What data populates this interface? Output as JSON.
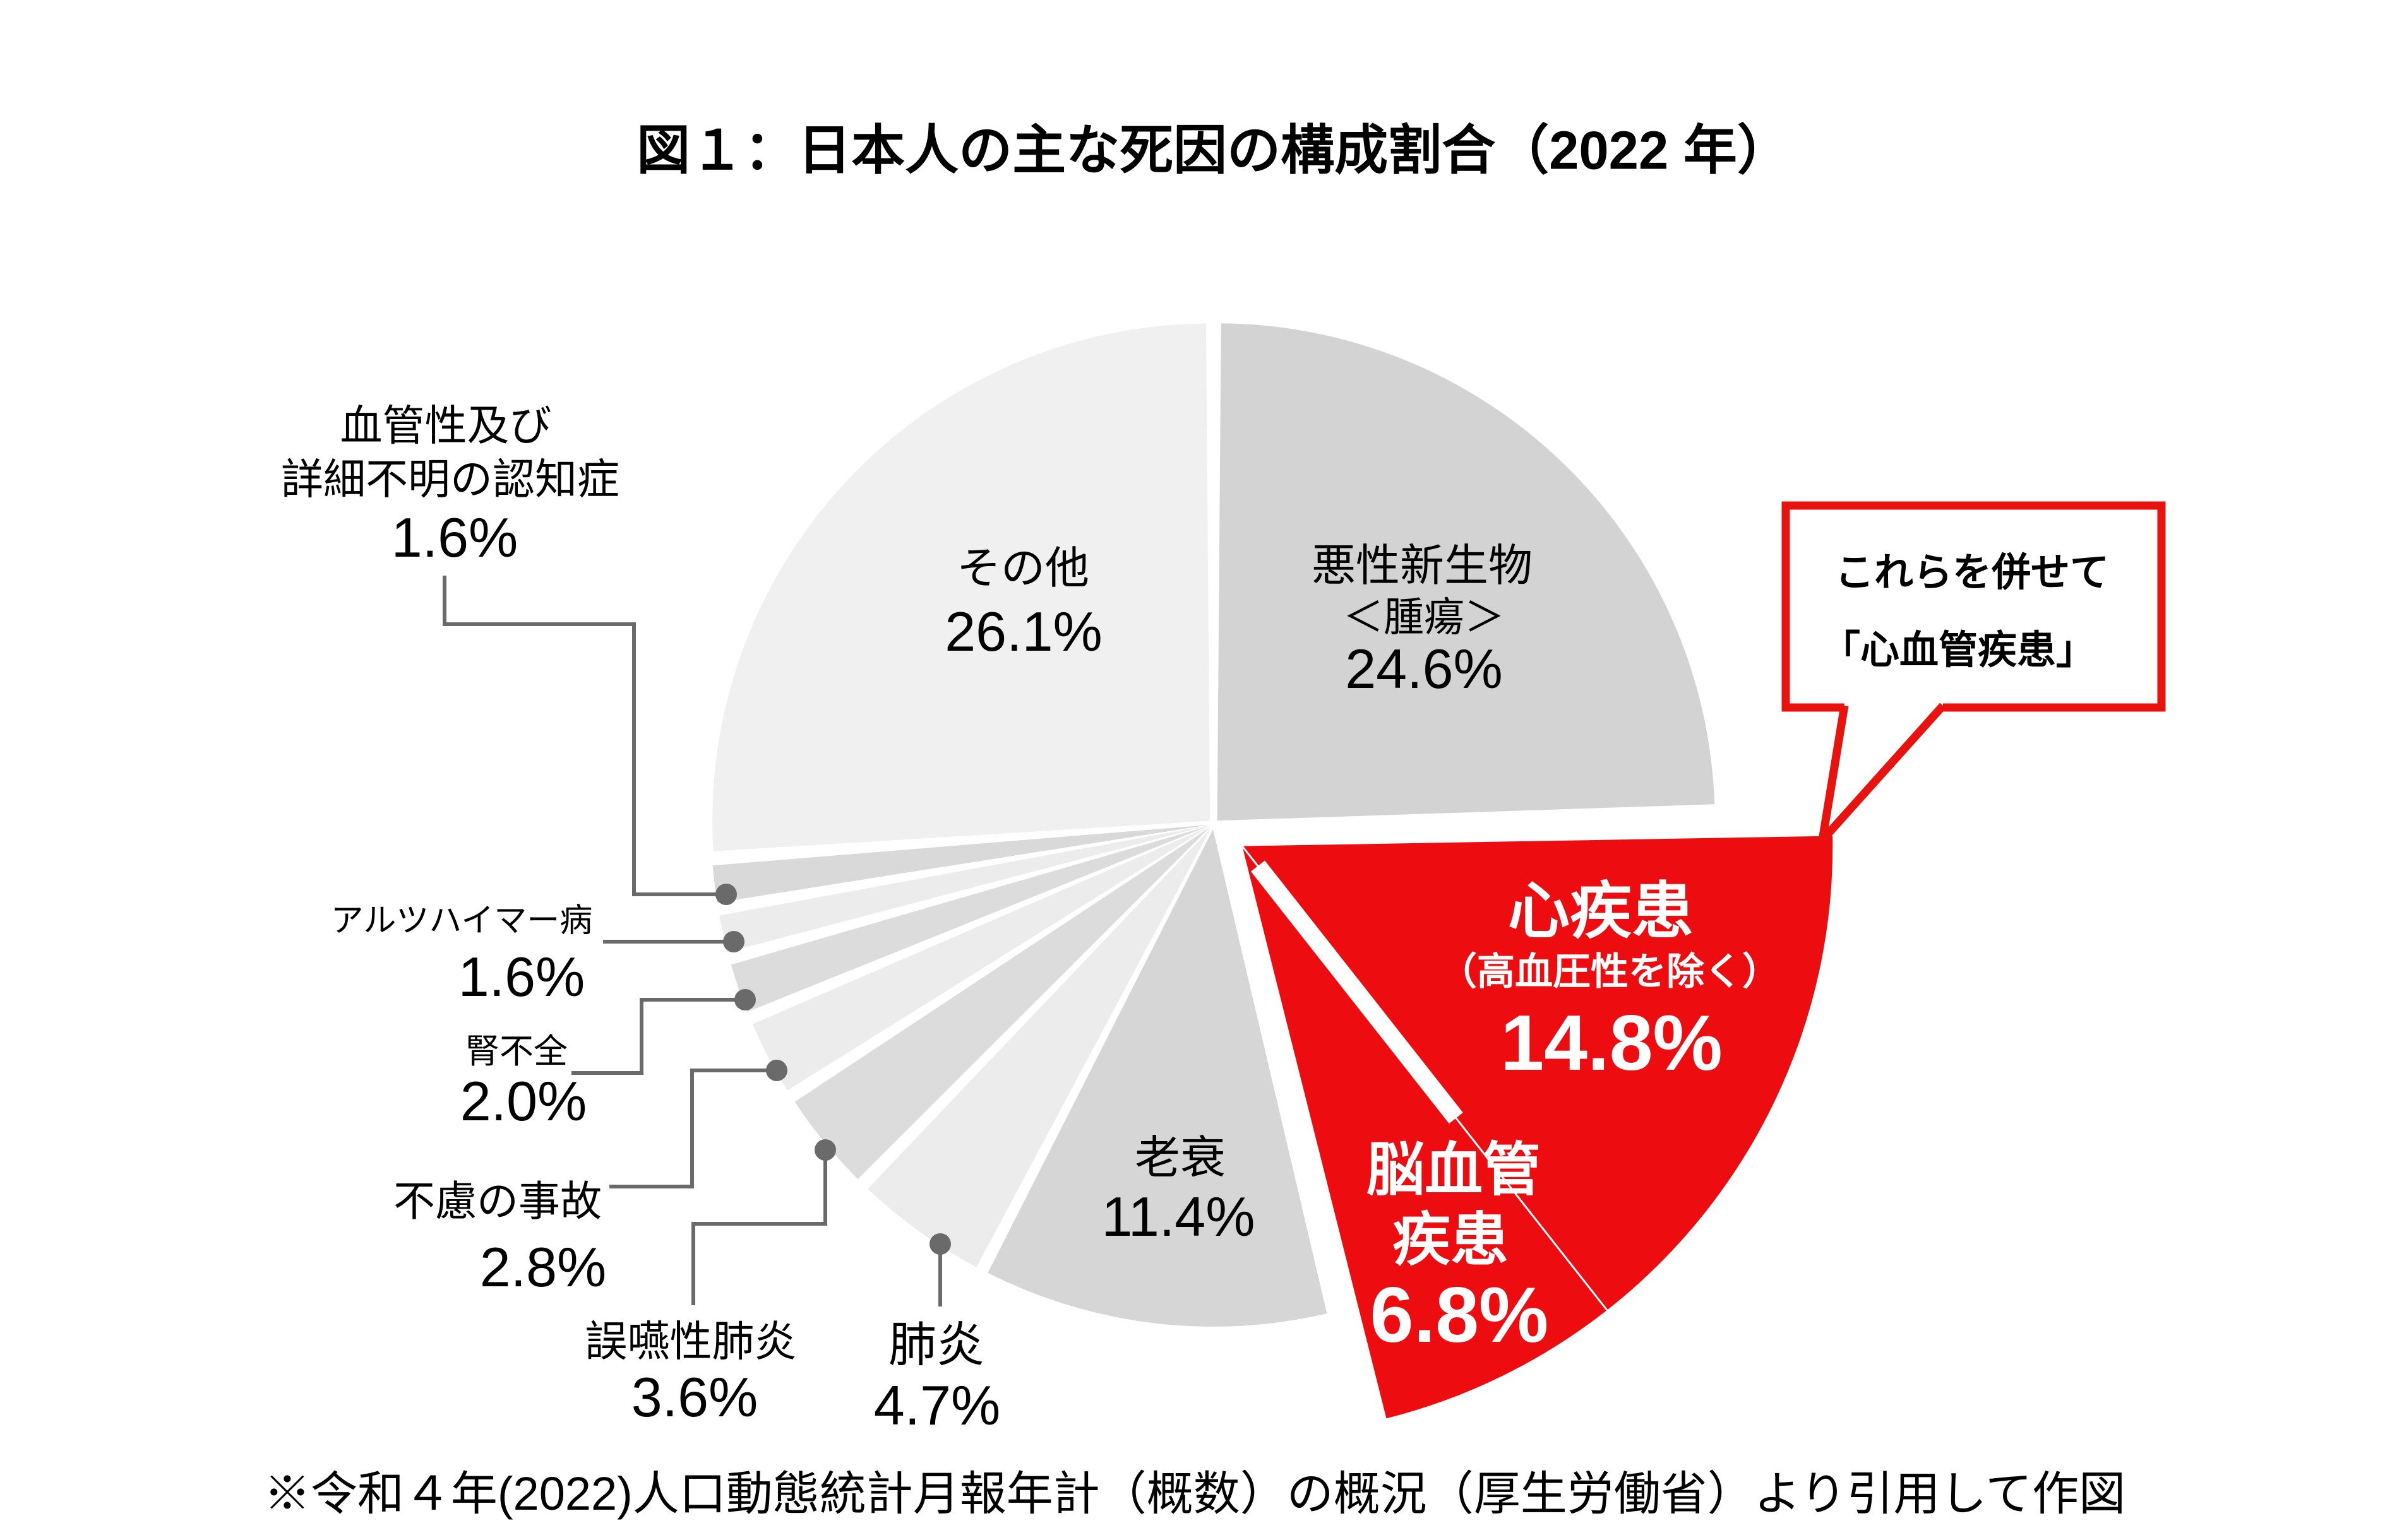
{
  "title": "図１：日本人の主な死因の構成割合（2022 年）",
  "footnote": "※令和４年(2022)人口動態統計月報年計（概数）の概況（厚生労働省）より引用して作図",
  "callout": {
    "line1": "これらを併せて",
    "line2": "「心血管疾患」",
    "border_color": "#e8120f"
  },
  "colors": {
    "highlight_red": "#ed0c10",
    "leader_gray": "#6a6a6a",
    "label_black": "#000000",
    "white": "#ffffff"
  },
  "chart_data": {
    "type": "pie",
    "title": "図１：日本人の主な死因の構成割合（2022 年）",
    "units": "%",
    "start_angle_deg": 0,
    "direction": "clockwise",
    "legend": "none",
    "annotation": "これらを併せて「心血管疾患」",
    "slices": [
      {
        "label": "悪性新生物＜腫瘍＞",
        "label_lines": [
          "悪性新生物",
          "＜腫瘍＞"
        ],
        "value": 24.6,
        "pct_label": "24.6%",
        "color": "#d3d3d3",
        "group": "other"
      },
      {
        "label": "心疾患（高血圧性を除く）",
        "label_lines": [
          "心疾患",
          "（高血圧性を除く）"
        ],
        "value": 14.8,
        "pct_label": "14.8%",
        "color": "#ed0c10",
        "group": "cardiovascular"
      },
      {
        "label": "脳血管疾患",
        "label_lines": [
          "脳血管",
          "疾患"
        ],
        "value": 6.8,
        "pct_label": "6.8%",
        "color": "#ed0c10",
        "group": "cardiovascular"
      },
      {
        "label": "老衰",
        "label_lines": [
          "老衰"
        ],
        "value": 11.4,
        "pct_label": "11.4%",
        "color": "#d6d6d6",
        "group": "other"
      },
      {
        "label": "肺炎",
        "label_lines": [
          "肺炎"
        ],
        "value": 4.7,
        "pct_label": "4.7%",
        "color": "#ececec",
        "group": "other"
      },
      {
        "label": "誤嚥性肺炎",
        "label_lines": [
          "誤嚥性肺炎"
        ],
        "value": 3.6,
        "pct_label": "3.6%",
        "color": "#dcdcdc",
        "group": "other"
      },
      {
        "label": "不慮の事故",
        "label_lines": [
          "不慮の事故"
        ],
        "value": 2.8,
        "pct_label": "2.8%",
        "color": "#ececec",
        "group": "other"
      },
      {
        "label": "腎不全",
        "label_lines": [
          "腎不全"
        ],
        "value": 2.0,
        "pct_label": "2.0%",
        "color": "#dcdcdc",
        "group": "other"
      },
      {
        "label": "アルツハイマー病",
        "label_lines": [
          "アルツハイマー病"
        ],
        "value": 1.6,
        "pct_label": "1.6%",
        "color": "#ececec",
        "group": "other"
      },
      {
        "label": "血管性及び詳細不明の認知症",
        "label_lines": [
          "血管性及び",
          "詳細不明の認知症"
        ],
        "value": 1.6,
        "pct_label": "1.6%",
        "color": "#d9d9d9",
        "group": "other"
      },
      {
        "label": "その他",
        "label_lines": [
          "その他"
        ],
        "value": 26.1,
        "pct_label": "26.1%",
        "color": "#f0f0f0",
        "group": "other"
      }
    ]
  }
}
